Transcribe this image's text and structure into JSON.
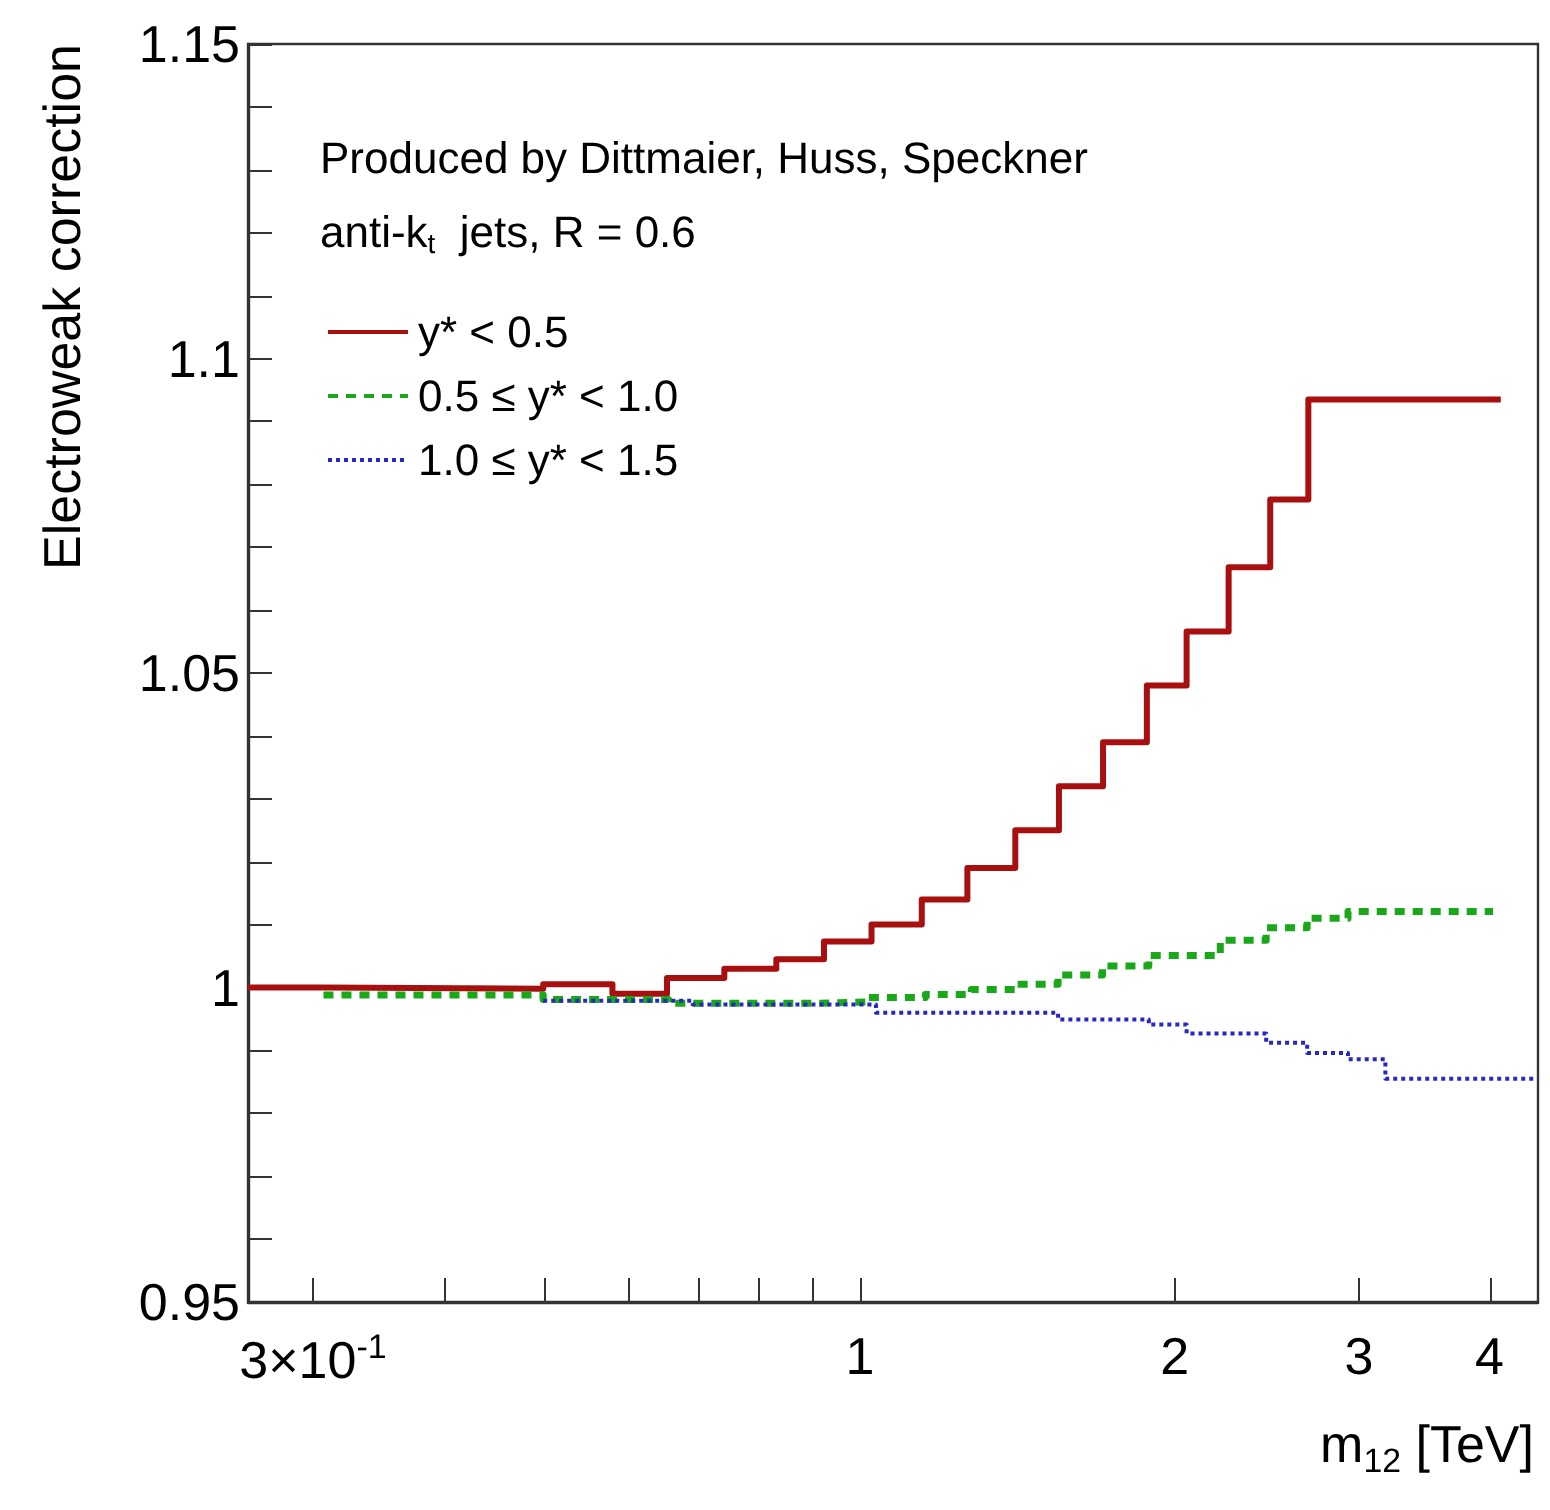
{
  "chart_data": {
    "type": "step",
    "xlabel": "m$_{12}$ [TeV]",
    "ylabel": "Electroweak correction",
    "annotations": [
      "Produced by Dittmaier, Huss, Speckner",
      "anti-k$_{t}$  jets, R = 0.6"
    ],
    "log": "x",
    "grid": false,
    "legend": "top left",
    "marker": "none",
    "xlim": [
      0.26,
      4.45
    ],
    "ylim": [
      0.95,
      1.15
    ],
    "xticks": [
      {
        "value": 0.3,
        "label": "3×10$^{-1}$"
      },
      {
        "value": 0.4,
        "label": null
      },
      {
        "value": 0.5,
        "label": null
      },
      {
        "value": 0.6,
        "label": null
      },
      {
        "value": 0.7,
        "label": null
      },
      {
        "value": 0.8,
        "label": null
      },
      {
        "value": 0.9,
        "label": null
      },
      1,
      2,
      3,
      4
    ],
    "yticks": [
      0.95,
      {
        "value": 0.96,
        "label": null
      },
      {
        "value": 0.97,
        "label": null
      },
      {
        "value": 0.98,
        "label": null
      },
      {
        "value": 0.99,
        "label": null
      },
      1,
      {
        "value": 1.01,
        "label": null
      },
      {
        "value": 1.02,
        "label": null
      },
      {
        "value": 1.03,
        "label": null
      },
      {
        "value": 1.04,
        "label": null
      },
      1.05,
      {
        "value": 1.06,
        "label": null
      },
      {
        "value": 1.07,
        "label": null
      },
      {
        "value": 1.08,
        "label": null
      },
      {
        "value": 1.09,
        "label": null
      },
      1.1,
      {
        "value": 1.11,
        "label": null
      },
      {
        "value": 1.12,
        "label": null
      },
      {
        "value": 1.13,
        "label": null
      },
      {
        "value": 1.14,
        "label": null
      },
      1.15
    ],
    "series": [
      {
        "name": "y* < 0.5",
        "color": "#a81010",
        "line_style": "solid",
        "x": [
          0.26,
          0.307,
          0.498,
          0.58,
          0.654,
          0.742,
          0.832,
          0.924,
          1.026,
          1.146,
          1.267,
          1.408,
          1.55,
          1.708,
          1.881,
          2.053,
          2.252,
          2.468,
          2.684,
          4.1
        ],
        "values": [
          1.0,
          0.9998,
          1.0005,
          0.999,
          1.0015,
          1.003,
          1.0045,
          1.0073,
          1.01,
          1.014,
          1.019,
          1.025,
          1.032,
          1.039,
          1.048,
          1.0566,
          1.0668,
          1.0776,
          1.0935,
          1.0935
        ]
      },
      {
        "name": "0.5 ≤ y* < 1.0",
        "color": "#1aa81a",
        "line_style": "dashed",
        "x": [
          0.307,
          0.498,
          0.656,
          0.912,
          1.018,
          1.155,
          1.278,
          1.414,
          1.547,
          1.706,
          1.889,
          2.211,
          2.446,
          2.677,
          2.929,
          4.03
        ],
        "values": [
          0.9988,
          0.9981,
          0.9975,
          0.9977,
          0.9984,
          0.9989,
          0.9997,
          1.0005,
          1.002,
          1.0034,
          1.0051,
          1.0075,
          1.0095,
          1.011,
          1.0121,
          1.0121
        ]
      },
      {
        "name": "1.0 ≤ y* < 1.5",
        "color": "#2828c0",
        "line_style": "dotted",
        "x": [
          0.498,
          0.692,
          1.036,
          1.547,
          1.889,
          2.053,
          2.446,
          2.677,
          2.929,
          3.18,
          4.45
        ],
        "values": [
          0.9979,
          0.9973,
          0.996,
          0.9949,
          0.9941,
          0.9927,
          0.9912,
          0.9896,
          0.9886,
          0.9855,
          0.9855
        ]
      }
    ]
  }
}
